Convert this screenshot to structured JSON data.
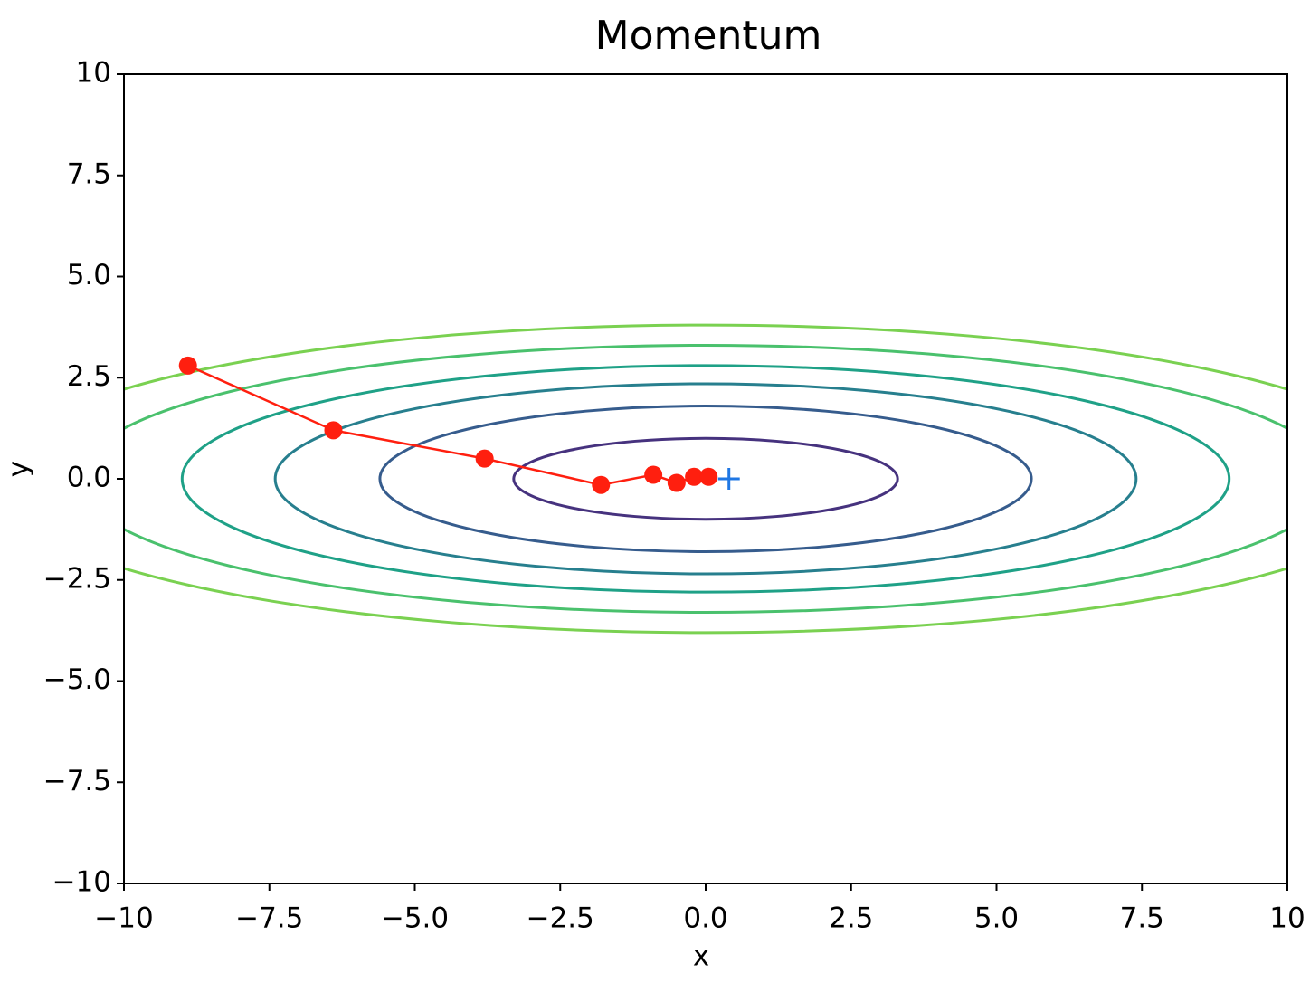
{
  "chart_data": {
    "type": "contour-path",
    "title": "Momentum",
    "xlabel": "x",
    "ylabel": "y",
    "xlim": [
      -10,
      10
    ],
    "ylim": [
      -10,
      10
    ],
    "xticks": [
      {
        "value": -10,
        "label": "−10"
      },
      {
        "value": -7.5,
        "label": "−7.5"
      },
      {
        "value": -5,
        "label": "−5.0"
      },
      {
        "value": -2.5,
        "label": "−2.5"
      },
      {
        "value": 0,
        "label": "0.0"
      },
      2.5,
      {
        "value": 5,
        "label": "5.0"
      },
      7.5,
      10
    ],
    "yticks": [
      {
        "value": -10,
        "label": "−10"
      },
      {
        "value": -7.5,
        "label": "−7.5"
      },
      {
        "value": -5,
        "label": "−5.0"
      },
      {
        "value": -2.5,
        "label": "−2.5"
      },
      {
        "value": 0,
        "label": "0.0"
      },
      2.5,
      {
        "value": 5,
        "label": "5.0"
      },
      7.5,
      10
    ],
    "contours": [
      {
        "rx": 3.3,
        "ry": 1.0,
        "color": "#46327e"
      },
      {
        "rx": 5.6,
        "ry": 1.8,
        "color": "#365c8d"
      },
      {
        "rx": 7.4,
        "ry": 2.35,
        "color": "#277f8e"
      },
      {
        "rx": 9.0,
        "ry": 2.8,
        "color": "#1fa187"
      },
      {
        "rx": 10.8,
        "ry": 3.3,
        "color": "#4ac16d"
      },
      {
        "rx": 12.3,
        "ry": 3.8,
        "color": "#7ad151"
      }
    ],
    "path": {
      "color": "#ff1f0f",
      "x": [
        -8.9,
        -6.4,
        -3.8,
        -1.8,
        -0.9,
        -0.5,
        -0.2,
        0.05
      ],
      "y": [
        2.8,
        1.2,
        0.5,
        -0.15,
        0.1,
        -0.1,
        0.05,
        0.05
      ]
    },
    "minimum": {
      "x": 0.4,
      "y": 0,
      "color": "#1f77e4"
    }
  }
}
